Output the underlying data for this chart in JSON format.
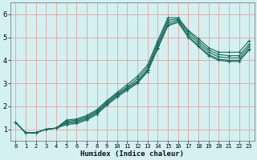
{
  "xlabel": "Humidex (Indice chaleur)",
  "bg_color": "#d4f0f0",
  "grid_color": "#e8a0a0",
  "line_color": "#1a6b5a",
  "spine_color": "#808080",
  "xlim": [
    -0.5,
    23.5
  ],
  "ylim": [
    0.5,
    6.5
  ],
  "yticks": [
    1,
    2,
    3,
    4,
    5,
    6
  ],
  "xticks": [
    0,
    1,
    2,
    3,
    4,
    5,
    6,
    7,
    8,
    9,
    10,
    11,
    12,
    13,
    14,
    15,
    16,
    17,
    18,
    19,
    20,
    21,
    22,
    23
  ],
  "figsize": [
    3.2,
    2.0
  ],
  "dpi": 100,
  "lines": [
    [
      1.3,
      0.85,
      0.85,
      1.0,
      1.05,
      1.4,
      1.45,
      1.6,
      1.85,
      2.25,
      2.6,
      2.95,
      3.3,
      3.8,
      4.85,
      5.85,
      5.85,
      5.3,
      4.95,
      4.55,
      4.35,
      4.35,
      4.35,
      4.85
    ],
    [
      1.3,
      0.85,
      0.85,
      1.0,
      1.05,
      1.35,
      1.4,
      1.55,
      1.8,
      2.2,
      2.55,
      2.85,
      3.2,
      3.7,
      4.75,
      5.75,
      5.8,
      5.25,
      4.85,
      4.45,
      4.25,
      4.2,
      4.2,
      4.7
    ],
    [
      1.3,
      0.85,
      0.85,
      1.0,
      1.05,
      1.3,
      1.35,
      1.5,
      1.75,
      2.15,
      2.5,
      2.8,
      3.1,
      3.6,
      4.65,
      5.65,
      5.75,
      5.15,
      4.75,
      4.35,
      4.15,
      4.1,
      4.1,
      4.6
    ],
    [
      1.3,
      0.85,
      0.85,
      1.0,
      1.05,
      1.25,
      1.3,
      1.45,
      1.7,
      2.1,
      2.45,
      2.75,
      3.05,
      3.55,
      4.55,
      5.55,
      5.7,
      5.05,
      4.65,
      4.25,
      4.05,
      4.0,
      4.0,
      4.5
    ],
    [
      1.3,
      0.85,
      0.85,
      1.0,
      1.05,
      1.2,
      1.25,
      1.4,
      1.65,
      2.05,
      2.4,
      2.7,
      3.0,
      3.5,
      4.5,
      5.5,
      5.65,
      5.0,
      4.6,
      4.2,
      4.0,
      3.95,
      3.95,
      4.45
    ]
  ]
}
